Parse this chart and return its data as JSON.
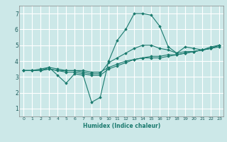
{
  "title": "",
  "xlabel": "Humidex (Indice chaleur)",
  "background_color": "#cce8e8",
  "grid_color": "#ffffff",
  "line_color": "#1a7a6e",
  "xlim": [
    -0.5,
    23.5
  ],
  "ylim": [
    0.5,
    7.5
  ],
  "xticks": [
    0,
    1,
    2,
    3,
    4,
    5,
    6,
    7,
    8,
    9,
    10,
    11,
    12,
    13,
    14,
    15,
    16,
    17,
    18,
    19,
    20,
    21,
    22,
    23
  ],
  "yticks": [
    1,
    2,
    3,
    4,
    5,
    6,
    7
  ],
  "lines": [
    {
      "x": [
        0,
        1,
        2,
        3,
        4,
        5,
        6,
        7,
        8,
        9,
        10,
        11,
        12,
        13,
        14,
        15,
        16,
        17,
        18,
        19,
        20,
        21,
        22,
        23
      ],
      "y": [
        3.4,
        3.4,
        3.4,
        3.6,
        3.1,
        2.6,
        3.2,
        3.1,
        1.4,
        1.7,
        4.0,
        5.3,
        6.0,
        7.0,
        7.0,
        6.9,
        6.2,
        4.9,
        4.5,
        4.9,
        4.8,
        4.7,
        4.9,
        5.0
      ]
    },
    {
      "x": [
        0,
        1,
        2,
        3,
        4,
        5,
        6,
        7,
        8,
        9,
        10,
        11,
        12,
        13,
        14,
        15,
        16,
        17,
        18,
        19,
        20,
        21,
        22,
        23
      ],
      "y": [
        3.4,
        3.4,
        3.5,
        3.6,
        3.5,
        3.4,
        3.4,
        3.3,
        3.2,
        3.2,
        3.9,
        4.2,
        4.5,
        4.8,
        5.0,
        5.0,
        4.8,
        4.7,
        4.5,
        4.6,
        4.6,
        4.7,
        4.8,
        5.0
      ]
    },
    {
      "x": [
        0,
        1,
        2,
        3,
        4,
        5,
        6,
        7,
        8,
        9,
        10,
        11,
        12,
        13,
        14,
        15,
        16,
        17,
        18,
        19,
        20,
        21,
        22,
        23
      ],
      "y": [
        3.4,
        3.4,
        3.4,
        3.5,
        3.4,
        3.3,
        3.3,
        3.2,
        3.1,
        3.1,
        3.5,
        3.7,
        3.9,
        4.1,
        4.2,
        4.3,
        4.3,
        4.4,
        4.4,
        4.5,
        4.6,
        4.7,
        4.8,
        5.0
      ]
    },
    {
      "x": [
        0,
        1,
        2,
        3,
        4,
        5,
        6,
        7,
        8,
        9,
        10,
        11,
        12,
        13,
        14,
        15,
        16,
        17,
        18,
        19,
        20,
        21,
        22,
        23
      ],
      "y": [
        3.4,
        3.4,
        3.4,
        3.5,
        3.4,
        3.4,
        3.4,
        3.4,
        3.3,
        3.3,
        3.6,
        3.8,
        4.0,
        4.1,
        4.2,
        4.2,
        4.2,
        4.3,
        4.4,
        4.5,
        4.6,
        4.7,
        4.8,
        4.9
      ]
    }
  ]
}
